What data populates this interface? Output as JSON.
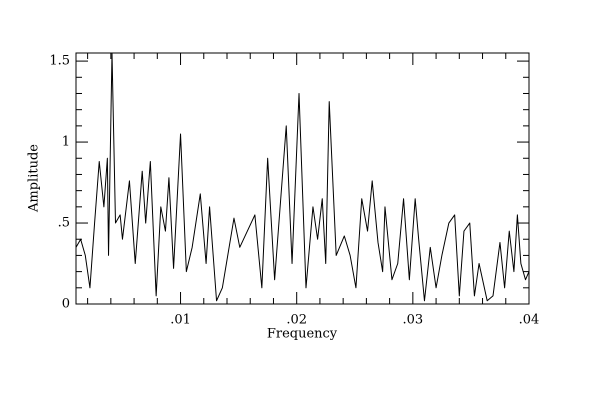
{
  "chart_data": {
    "type": "line",
    "xlabel": "Frequency",
    "ylabel": "Amplitude",
    "xlim": [
      0.001,
      0.04
    ],
    "ylim": [
      0,
      1.55
    ],
    "xticks": [
      {
        "value": 0.01,
        "label": ".01"
      },
      {
        "value": 0.02,
        "label": ".02"
      },
      {
        "value": 0.03,
        "label": ".03"
      },
      {
        "value": 0.04,
        "label": ".04"
      }
    ],
    "yticks": [
      0,
      {
        "value": 0.5,
        "label": ".5"
      },
      1,
      1.5
    ],
    "xminorticks": [
      0.002,
      0.004,
      0.006,
      0.008,
      0.012,
      0.014,
      0.016,
      0.018,
      0.022,
      0.024,
      0.026,
      0.028,
      0.032,
      0.034,
      0.036,
      0.038
    ],
    "yminorticks": [
      0.1,
      0.2,
      0.3,
      0.4,
      0.6,
      0.7,
      0.8,
      0.9,
      1.1,
      1.2,
      1.3,
      1.4
    ],
    "series": [
      {
        "name": "Amplitude",
        "color": "#000000",
        "x": [
          0.001,
          0.0014,
          0.0018,
          0.0022,
          0.0026,
          0.003,
          0.0034,
          0.0037,
          0.0038,
          0.0041,
          0.0044,
          0.0048,
          0.005,
          0.0056,
          0.0061,
          0.0067,
          0.007,
          0.0074,
          0.0079,
          0.0083,
          0.0087,
          0.009,
          0.0094,
          0.01,
          0.0105,
          0.011,
          0.0117,
          0.0122,
          0.0125,
          0.0131,
          0.0136,
          0.0146,
          0.0151,
          0.0164,
          0.017,
          0.0175,
          0.0181,
          0.0191,
          0.0196,
          0.0202,
          0.0208,
          0.0214,
          0.0218,
          0.0222,
          0.0225,
          0.0228,
          0.0234,
          0.0241,
          0.0246,
          0.0251,
          0.0256,
          0.0261,
          0.0265,
          0.027,
          0.0274,
          0.0276,
          0.0282,
          0.0287,
          0.0292,
          0.0297,
          0.0302,
          0.0305,
          0.031,
          0.0315,
          0.032,
          0.0325,
          0.0331,
          0.0336,
          0.034,
          0.0344,
          0.0349,
          0.0353,
          0.0357,
          0.0364,
          0.0369,
          0.0375,
          0.0379,
          0.0383,
          0.0387,
          0.039,
          0.0393,
          0.0397,
          0.04
        ],
        "values": [
          0.35,
          0.4,
          0.3,
          0.1,
          0.5,
          0.88,
          0.6,
          0.9,
          0.3,
          1.55,
          0.5,
          0.55,
          0.4,
          0.76,
          0.25,
          0.82,
          0.5,
          0.88,
          0.05,
          0.6,
          0.45,
          0.78,
          0.22,
          1.05,
          0.2,
          0.35,
          0.68,
          0.25,
          0.6,
          0.02,
          0.1,
          0.53,
          0.35,
          0.55,
          0.1,
          0.9,
          0.15,
          1.1,
          0.25,
          1.3,
          0.1,
          0.6,
          0.4,
          0.65,
          0.25,
          1.25,
          0.3,
          0.42,
          0.3,
          0.1,
          0.65,
          0.45,
          0.76,
          0.38,
          0.2,
          0.6,
          0.15,
          0.25,
          0.65,
          0.15,
          0.65,
          0.4,
          0.02,
          0.35,
          0.1,
          0.3,
          0.5,
          0.55,
          0.05,
          0.45,
          0.5,
          0.05,
          0.25,
          0.02,
          0.05,
          0.38,
          0.1,
          0.45,
          0.2,
          0.55,
          0.25,
          0.15,
          0.2
        ]
      }
    ]
  }
}
